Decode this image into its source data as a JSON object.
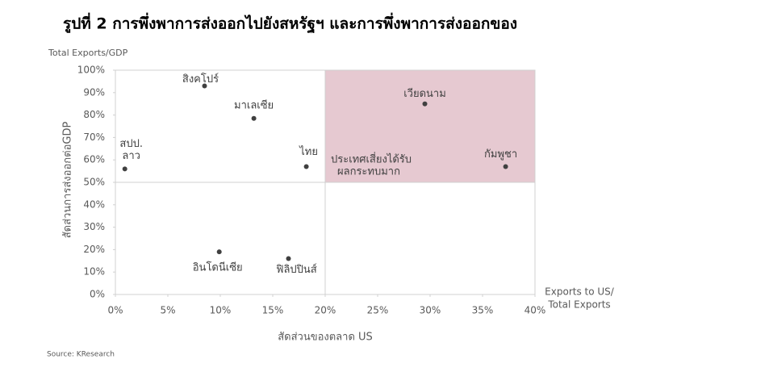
{
  "chart_data": {
    "type": "scatter",
    "title": "รูปที่ 2 การพึ่งพาการส่งออกไปยังสหรัฐฯ และการพึ่งพาการส่งออกของ",
    "y_corner_label": "Total Exports/GDP",
    "y_label": "สัดส่วนการส่งออกต่อGDP",
    "x_label": "สัดส่วนของตลาด US",
    "x_corner_label": [
      "Exports to US/",
      "Total Exports"
    ],
    "source": "Source: KResearch",
    "annotation": [
      "ประเทศเสี่ยงได้รับ",
      "ผลกระทบมาก"
    ],
    "labels": [
      [
        "สปป.",
        "ลาว"
      ],
      "สิงคโปร์",
      "มาเลเซีย",
      "ไทย",
      "อินโดนีเซีย",
      "ฟิลิปปินส์",
      "เวียดนาม",
      "กัมพูชา"
    ],
    "x": [
      0.9,
      8.5,
      13.2,
      18.2,
      9.9,
      16.5,
      29.5,
      37.2
    ],
    "y": [
      56,
      93,
      78.5,
      57,
      19,
      16,
      85,
      57
    ],
    "color": "#404040",
    "highlight": {
      "xlim": [
        20,
        40
      ],
      "ylim": [
        50,
        100
      ],
      "color": "#e6c9d1"
    },
    "dividers": {
      "x": 20,
      "y": 50
    },
    "xlim": [
      0,
      40
    ],
    "ylim": [
      0,
      100
    ],
    "xticks": [
      {
        "value": 0,
        "label": "0%"
      },
      {
        "value": 5,
        "label": "5%"
      },
      {
        "value": 10,
        "label": "10%"
      },
      {
        "value": 15,
        "label": "15%"
      },
      {
        "value": 20,
        "label": "20%"
      },
      {
        "value": 25,
        "label": "25%"
      },
      {
        "value": 30,
        "label": "30%"
      },
      {
        "value": 35,
        "label": "35%"
      },
      {
        "value": 40,
        "label": "40%"
      }
    ],
    "yticks": [
      {
        "value": 0,
        "label": "0%"
      },
      {
        "value": 10,
        "label": "10%"
      },
      {
        "value": 20,
        "label": "20%"
      },
      {
        "value": 30,
        "label": "30%"
      },
      {
        "value": 40,
        "label": "40%"
      },
      {
        "value": 50,
        "label": "50%"
      },
      {
        "value": 60,
        "label": "60%"
      },
      {
        "value": 70,
        "label": "70%"
      },
      {
        "value": 80,
        "label": "80%"
      },
      {
        "value": 90,
        "label": "90%"
      },
      {
        "value": 100,
        "label": "100%"
      }
    ]
  }
}
